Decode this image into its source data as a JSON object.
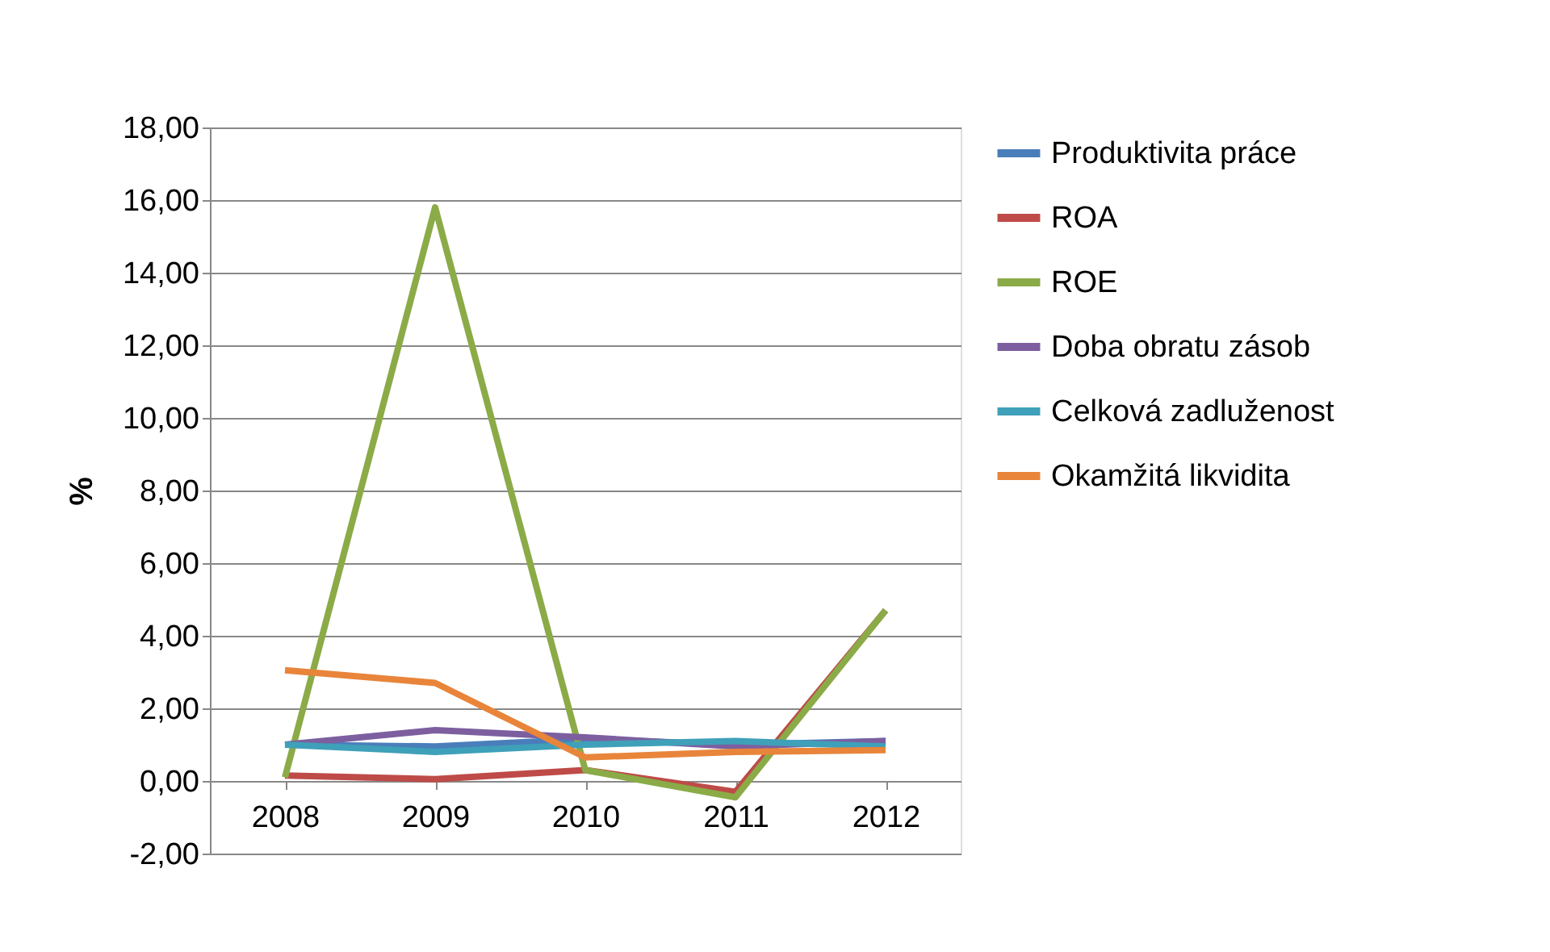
{
  "chart_data": {
    "type": "line",
    "ylabel": "%",
    "categories": [
      "2008",
      "2009",
      "2010",
      "2011",
      "2012"
    ],
    "series": [
      {
        "name": "Produktivita práce",
        "color": "#4a7ebb",
        "values": [
          1.0,
          0.95,
          1.15,
          1.0,
          1.1
        ]
      },
      {
        "name": "ROA",
        "color": "#be4b48",
        "values": [
          0.15,
          0.05,
          0.3,
          -0.3,
          4.7
        ]
      },
      {
        "name": "ROE",
        "color": "#8aab47",
        "values": [
          0.1,
          15.8,
          0.3,
          -0.45,
          4.7
        ]
      },
      {
        "name": "Doba obratu zásob",
        "color": "#7d5fa0",
        "values": [
          1.0,
          1.4,
          1.2,
          0.95,
          1.1
        ]
      },
      {
        "name": "Celková zadluženost",
        "color": "#3fa0b9",
        "values": [
          1.0,
          0.8,
          1.0,
          1.1,
          0.95
        ]
      },
      {
        "name": "Okamžitá likvidita",
        "color": "#e8853b",
        "values": [
          3.05,
          2.7,
          0.65,
          0.8,
          0.85
        ]
      }
    ],
    "ylim": [
      -2,
      18
    ],
    "yticks": [
      {
        "value": -2,
        "label": "-2,00"
      },
      {
        "value": 0,
        "label": "0,00"
      },
      {
        "value": 2,
        "label": "2,00"
      },
      {
        "value": 4,
        "label": "4,00"
      },
      {
        "value": 6,
        "label": "6,00"
      },
      {
        "value": 8,
        "label": "8,00"
      },
      {
        "value": 10,
        "label": "10,00"
      },
      {
        "value": 12,
        "label": "12,00"
      },
      {
        "value": 14,
        "label": "14,00"
      },
      {
        "value": 16,
        "label": "16,00"
      },
      {
        "value": 18,
        "label": "18,00"
      }
    ],
    "grid": "y",
    "legend": "right",
    "line_style": "solid",
    "marker": "none"
  }
}
